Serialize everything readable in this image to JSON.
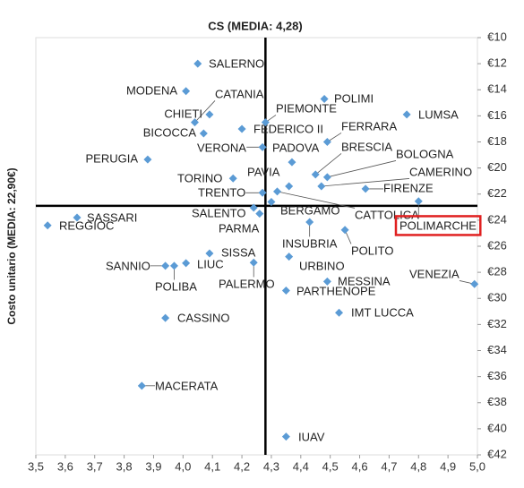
{
  "chart_data": {
    "type": "scatter",
    "title": "CS (MEDIA: 4,28)",
    "y_label": "Costo unitario (MEDIA: 22,90€)",
    "color": "#5b9bd5",
    "highlight_color": "#e02020",
    "highlighted": [
      28
    ],
    "mean_lines": {
      "x": 4.28,
      "y": 22.9
    },
    "y_inverted": true,
    "y_axis_side": "right",
    "xlim": [
      3.5,
      5.0
    ],
    "ylim": [
      10,
      42
    ],
    "xticks": [
      {
        "value": 3.5,
        "label": "3,5"
      },
      {
        "value": 3.6,
        "label": "3,6"
      },
      {
        "value": 3.7,
        "label": "3,7"
      },
      {
        "value": 3.8,
        "label": "3,8"
      },
      {
        "value": 3.9,
        "label": "3,9"
      },
      {
        "value": 4.0,
        "label": "4,0"
      },
      {
        "value": 4.1,
        "label": "4,1"
      },
      {
        "value": 4.2,
        "label": "4,2"
      },
      {
        "value": 4.3,
        "label": "4,3"
      },
      {
        "value": 4.4,
        "label": "4,4"
      },
      {
        "value": 4.5,
        "label": "4,5"
      },
      {
        "value": 4.6,
        "label": "4,6"
      },
      {
        "value": 4.7,
        "label": "4,7"
      },
      {
        "value": 4.8,
        "label": "4,8"
      },
      {
        "value": 4.9,
        "label": "4,9"
      },
      {
        "value": 5.0,
        "label": "5,0"
      }
    ],
    "yticks": [
      {
        "value": 10,
        "label": "€10"
      },
      {
        "value": 12,
        "label": "€12"
      },
      {
        "value": 14,
        "label": "€14"
      },
      {
        "value": 16,
        "label": "€16"
      },
      {
        "value": 18,
        "label": "€18"
      },
      {
        "value": 20,
        "label": "€20"
      },
      {
        "value": 22,
        "label": "€22"
      },
      {
        "value": 24,
        "label": "€24"
      },
      {
        "value": 26,
        "label": "€26"
      },
      {
        "value": 28,
        "label": "€28"
      },
      {
        "value": 30,
        "label": "€30"
      },
      {
        "value": 32,
        "label": "€32"
      },
      {
        "value": 34,
        "label": "€34"
      },
      {
        "value": 36,
        "label": "€36"
      },
      {
        "value": 38,
        "label": "€38"
      },
      {
        "value": 40,
        "label": "€40"
      },
      {
        "value": 42,
        "label": "€42"
      }
    ],
    "labels": [
      "SALERNO",
      "MODENA",
      "CATANIA",
      "CHIETI",
      "BICOCCA",
      "FEDERICO II",
      "PIEMONTE",
      "POLIMI",
      "LUMSA",
      "FERRARA",
      "PERUGIA",
      "VERONA",
      "PADOVA",
      "BRESCIA",
      "BOLOGNA",
      "CAMERINO",
      "PAVIA",
      "TORINO",
      "FIRENZE",
      "TRENTO",
      "SALENTO",
      "BERGAMO",
      "CATTOLICA",
      "PARMA",
      "SASSARI",
      "REGGIOC",
      "INSUBRIA",
      "POLITO",
      "POLIMARCHE",
      "SISSA",
      "SANNIO",
      "POLIBA",
      "LIUC",
      "PALERMO",
      "URBINO",
      "MESSINA",
      "PARTHENOPE",
      "VENEZIA",
      "IMT LUCCA",
      "CASSINO",
      "MACERATA",
      "IUAV"
    ],
    "x": [
      4.05,
      4.01,
      4.04,
      4.09,
      4.07,
      4.2,
      4.28,
      4.48,
      4.76,
      4.49,
      3.88,
      4.27,
      4.37,
      4.45,
      4.49,
      4.47,
      4.36,
      4.17,
      4.62,
      4.27,
      4.24,
      4.3,
      4.32,
      4.26,
      3.64,
      3.54,
      4.43,
      4.55,
      4.8,
      4.09,
      3.94,
      3.97,
      4.01,
      4.24,
      4.36,
      4.49,
      4.35,
      4.99,
      4.53,
      3.94,
      3.86,
      4.35
    ],
    "y": [
      12.0,
      14.1,
      16.5,
      15.9,
      17.35,
      17.0,
      16.5,
      14.7,
      15.9,
      18.0,
      19.35,
      18.4,
      19.55,
      20.5,
      20.7,
      21.4,
      21.4,
      20.8,
      21.6,
      21.9,
      23.05,
      22.6,
      21.8,
      23.5,
      23.8,
      24.4,
      24.15,
      24.75,
      22.55,
      26.55,
      27.5,
      27.5,
      27.3,
      27.25,
      26.8,
      28.7,
      29.4,
      28.9,
      31.1,
      31.5,
      36.7,
      40.6
    ]
  }
}
